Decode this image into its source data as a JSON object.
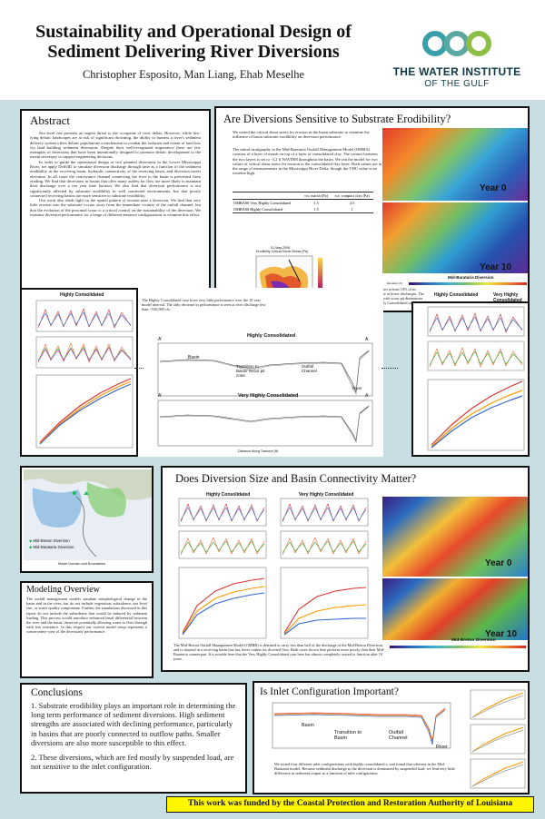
{
  "header": {
    "title_line1": "Sustainability and Operational Design of",
    "title_line2": "Sediment Delivering River Diversions",
    "authors": "Christopher Esposito, Man Liang, Ehab Meselhe",
    "logo_line1": "THE WATER INSTITUTE",
    "logo_line2": "OF THE GULF"
  },
  "abstract": {
    "title": "Abstract",
    "p1": "Sea level rise presents an urgent threat to the occupants of river deltas. However, while low-lying deltaic landscapes are at risk of significant drowning, the ability to harness a river's sediment delivery system offers deltaic populations a mechanism to combat the isolation and extent of land loss via land building sediment diversions. Despite their well-recognized importance there are few examples of diversions that have been intentionally designed to promote deltaic development to the extent necessary to support engineering decisions.",
    "p2": "In order to guide the operational design of two planned diversions in the Lower Mississippi River, we apply Delft3D to simulate diversion discharge through time as a function of the sediment erodibility in the receiving basin, hydraulic connectivity of the receiving basin, and diversion invert elevation. In all cases the conveyance channel connecting the river to the basin is prevented from eroding. We find that diversions in basins that offer many outlets for flow are more likely to maintain their discharge over a ten year time horizon. We also find that diversion performance is not significantly affected by substrate erodibility in well connected environments, but that poorly connected receiving basins are more sensitive to substrate erodibility.",
    "p3": "Our work also sheds light on the spatial pattern of erosion near a diversion. We find that very little erosion into the substrate occurs away from the immediate vicinity of the outfall channel, but that the evolution of the proximal scour is a critical control on the sustainability of the diversion. We examine diversion performance for a range of different entrance configurations to examine this effect."
  },
  "erodibility": {
    "title": "Are Diversions Sensitive to Substrate Erodibility?",
    "p1": "We varied the critical shear stress for erosion in the basin substrate to examine the influence of basin substrate erodibility on diversion performance.",
    "p2": "The initial stratigraphy in the Mid-Barataria Outfall Management Model (OMBA) consists of a layer of marsh on top of a layer of consolidated clay. The contact between the two layers is set to -3.2 ft NAVD88 throughout the basin. We ran the model for two values of critical shear stress for erosion to the consolidated clay layer. Both values are in the range of measurements in the Mississippi River Delta, though the VHC value is an extreme high.",
    "table_headers": [
      "",
      "τcr, marsh (Pa)",
      "τcr, compact clay (Pa)"
    ],
    "table_rows": [
      [
        "OMBA00 Very Highly Consolidated",
        "1.5",
        "2.5"
      ],
      [
        "OMBA00 Highly Consolidated",
        "1.5",
        "1"
      ]
    ],
    "map_title": "Erodibility Critical Shear Stress (Pa)",
    "map_date": "01-May-2008",
    "year0": "Year 0",
    "year10": "Year 10",
    "diversion_label": "Mid-Barataria Diversion",
    "elev_label": "Elevation (ft)",
    "result_text": "The Very Highly Consolidated case loses at least 10% of its performance at all discharges, and more at lower discharges. The decrease in performance is associated with scour pit dimensions that are smaller than those of the Highly Consolidated case.",
    "hc_label": "Highly Consolidated",
    "vhc_label": "Very Highly Consolidated"
  },
  "transect": {
    "hc_text": "The Highly Consolidated case loses very little performance over the 10 year model interval. The only decrease in performance is seen at river discharge less than ~550,000 cfs.",
    "hc_title": "Highly Consolidated",
    "vhc_title": "Very Highly Consolidated",
    "a_prime": "A'",
    "a": "A",
    "basin": "Basin",
    "transition": "Transition to Basin/ Scour pit zone",
    "outfall": "Outfall Channel",
    "river": "River",
    "xlabel": "Distance Along Transect (ft)",
    "ylabel": "Elevation (ft NAVD88)"
  },
  "map_small": {
    "legend1": "Mid-Breton Diversion",
    "legend2": "Mid-Barataria Diversion",
    "caption": "Model Domain and Boundaries"
  },
  "modeling": {
    "title": "Modeling Overview",
    "text": "The outfall management models simulate morphological change in the basin and in the river, but do not include vegetation, subsidence, sea level rise, or water quality components. Further, the simulations discussed in this report do not include the subsidence that would be induced by sediment loading. This process would introduce enhanced basal differential between the river and the basin, therefore potentially allowing water to flow through with less resistance. In this respect our current model setup represents a conservative view of the diversions' performance."
  },
  "size": {
    "title": "Does Diversion Size and Basin Connectivity Matter?",
    "hc": "Highly Consolidated",
    "vhc": "Very Highly Consolidated",
    "year0": "Year 0",
    "year10": "Year 10",
    "diversion_label": "Mid-Breton Diversion",
    "text": "The Mid-Breton Outfall Management Model (OMBR) is destined to carry less than half of the discharge of the Mid-Breton Diversion, and is situated in a receiving basin that has fewer outlets for diverted flow. Both cases shown here perform more poorly than their Mid-Barataria counterpart. It is notable here that the Very Highly Consolidated case here has almost completely ceased to function after 10 years."
  },
  "conclusions": {
    "title": "Conclusions",
    "c1": "1. Substrate erodibility plays an important role in determining the long term performance of sediment diversions. High sediment strengths are associated with declining performance, particularly in basins that are poorly connected to outflow paths. Smaller diversions are also more susceptible to this effect.",
    "c2": "2. These diversions, which are fed mostly by suspended load, are not sensitive to the inlet configuration."
  },
  "inlet": {
    "title": "Is Inlet Configuration Important?",
    "basin": "Basin",
    "transition": "Transition to Basin",
    "outfall": "Outfall Channel",
    "river": "River",
    "text": "We tested four different inlet configurations with highly consolidated s, and found that whereas in the Mid-Barataria model. Because sediment discharge to the diversion is dominated by suspended load, we find very little difference in sediment output as a function of inlet configuration."
  },
  "footer": {
    "funding": "This work was funded by the Coastal Protection and Restoration Authority of Louisiana"
  },
  "colors": {
    "background": "#c9dee2",
    "logo_teal": "#3aa0a8",
    "logo_green": "#8dbf47",
    "footer_bg": "#fff600"
  }
}
